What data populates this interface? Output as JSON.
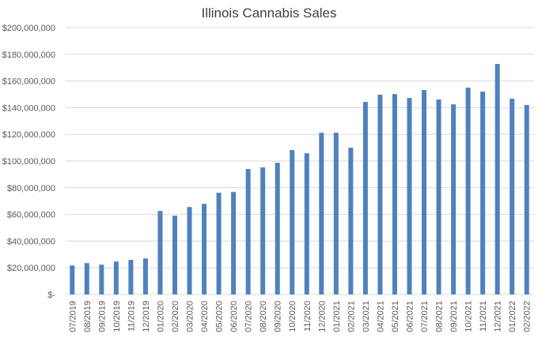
{
  "chart_data": {
    "type": "bar",
    "title": "Illinois Cannabis Sales",
    "xlabel": "",
    "ylabel": "",
    "ylim": [
      0,
      200000000
    ],
    "grid": true,
    "color": "#4f81bd",
    "y_ticks": [
      0,
      20000000,
      40000000,
      60000000,
      80000000,
      100000000,
      120000000,
      140000000,
      160000000,
      180000000,
      200000000
    ],
    "y_tick_labels": [
      "$-",
      "$20,000,000",
      "$40,000,000",
      "$60,000,000",
      "$80,000,000",
      "$100,000,000",
      "$120,000,000",
      "$140,000,000",
      "$160,000,000",
      "$180,000,000",
      "$200,000,000"
    ],
    "categories": [
      "07/2019",
      "08/2019",
      "09/2019",
      "10/2019",
      "11/2019",
      "12/2019",
      "01/2020",
      "02/2020",
      "03/2020",
      "04/2020",
      "05/2020",
      "06/2020",
      "07/2020",
      "08/2020",
      "09/2020",
      "10/2020",
      "11/2020",
      "12/2020",
      "01/2021",
      "02/2021",
      "03/2021",
      "04/2021",
      "05/2021",
      "06/2021",
      "07/2021",
      "08/2021",
      "09/2021",
      "10/2021",
      "11/2021",
      "12/2021",
      "01/2022",
      "02/2022"
    ],
    "values": [
      21700000,
      23500000,
      22300000,
      24700000,
      25900000,
      27000000,
      62600000,
      59000000,
      65500000,
      67900000,
      76200000,
      76800000,
      94000000,
      95200000,
      98700000,
      108200000,
      105800000,
      121200000,
      121200000,
      110000000,
      144300000,
      149700000,
      150200000,
      147300000,
      153200000,
      146100000,
      142500000,
      155000000,
      152000000,
      172800000,
      146700000,
      142000000
    ]
  }
}
